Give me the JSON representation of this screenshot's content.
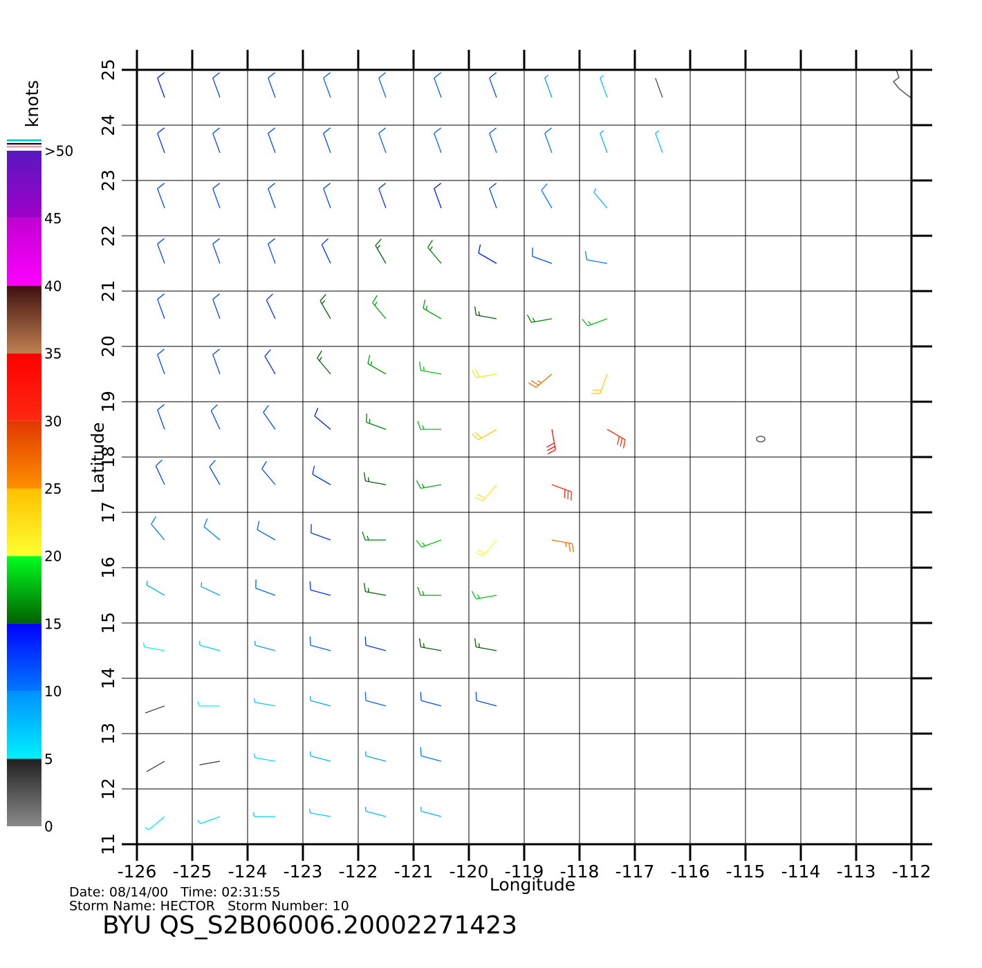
{
  "chart_data": {
    "type": "wind-barb",
    "x_label": "Longitude",
    "y_label": "Latitude",
    "xlim": [
      -126,
      -112
    ],
    "ylim": [
      11,
      25
    ],
    "xticks": [
      -126,
      -125,
      -124,
      -123,
      -122,
      -121,
      -120,
      -119,
      -118,
      -117,
      -116,
      -115,
      -114,
      -113,
      -112
    ],
    "yticks": [
      11,
      12,
      13,
      14,
      15,
      16,
      17,
      18,
      19,
      20,
      21,
      22,
      23,
      24,
      25
    ],
    "grid": true,
    "colorbar": {
      "label": "knots",
      "lim": [
        0,
        50
      ],
      "bands": [
        {
          "from": 0,
          "to": 5,
          "colors": [
            "#8a8a8a",
            "#202020"
          ]
        },
        {
          "from": 5,
          "to": 10,
          "colors": [
            "#00f0ff",
            "#0090ff"
          ]
        },
        {
          "from": 10,
          "to": 15,
          "colors": [
            "#0078ff",
            "#0000ff"
          ]
        },
        {
          "from": 15,
          "to": 20,
          "colors": [
            "#006000",
            "#00ff20"
          ]
        },
        {
          "from": 20,
          "to": 25,
          "colors": [
            "#ffff30",
            "#ffc000"
          ]
        },
        {
          "from": 25,
          "to": 30,
          "colors": [
            "#ff9000",
            "#e03800"
          ]
        },
        {
          "from": 30,
          "to": 35,
          "colors": [
            "#ff2810",
            "#ff0000"
          ]
        },
        {
          "from": 35,
          "to": 40,
          "colors": [
            "#c08050",
            "#401010"
          ]
        },
        {
          "from": 40,
          "to": 45,
          "colors": [
            "#ff00ff",
            "#c000d0"
          ]
        },
        {
          "from": 45,
          "to": 50,
          "colors": [
            "#a000c8",
            "#5818c0"
          ]
        }
      ],
      "ticks": [
        0,
        5,
        10,
        15,
        20,
        25,
        30,
        35,
        40,
        45,
        {
          "value": 50,
          "label": ">50"
        }
      ]
    },
    "rows": [
      {
        "lat": 24.5,
        "lon": [
          -125.5,
          -124.5,
          -123.5,
          -122.5,
          -121.5,
          -120.5,
          -119.5,
          -118.5,
          -117.5,
          -116.5
        ],
        "speed": [
          14,
          12,
          12,
          11,
          11,
          11,
          12,
          9,
          7,
          3
        ],
        "dir": [
          340,
          340,
          340,
          340,
          340,
          340,
          340,
          340,
          340,
          340
        ]
      },
      {
        "lat": 23.5,
        "lon": [
          -125.5,
          -124.5,
          -123.5,
          -122.5,
          -121.5,
          -120.5,
          -119.5,
          -118.5,
          -117.5,
          -116.5
        ],
        "speed": [
          13,
          12,
          12,
          12,
          11,
          11,
          11,
          10,
          8,
          7
        ],
        "dir": [
          340,
          340,
          340,
          340,
          340,
          340,
          340,
          340,
          340,
          340
        ]
      },
      {
        "lat": 22.5,
        "lon": [
          -125.5,
          -124.5,
          -123.5,
          -122.5,
          -121.5,
          -120.5,
          -119.5,
          -118.5,
          -117.5
        ],
        "speed": [
          12,
          12,
          12,
          12,
          13,
          14,
          12,
          10,
          8
        ],
        "dir": [
          340,
          340,
          340,
          340,
          340,
          340,
          340,
          330,
          320
        ]
      },
      {
        "lat": 21.5,
        "lon": [
          -125.5,
          -124.5,
          -123.5,
          -122.5,
          -121.5,
          -120.5,
          -119.5,
          -118.5,
          -117.5
        ],
        "speed": [
          12,
          12,
          12,
          13,
          15,
          16,
          14,
          12,
          10
        ],
        "dir": [
          340,
          340,
          340,
          335,
          330,
          320,
          300,
          290,
          280
        ]
      },
      {
        "lat": 20.5,
        "lon": [
          -125.5,
          -124.5,
          -123.5,
          -122.5,
          -121.5,
          -120.5,
          -119.5,
          -118.5,
          -117.5
        ],
        "speed": [
          12,
          12,
          13,
          15,
          17,
          17,
          15,
          16,
          18
        ],
        "dir": [
          340,
          340,
          335,
          330,
          320,
          300,
          280,
          260,
          250
        ]
      },
      {
        "lat": 19.5,
        "lon": [
          -125.5,
          -124.5,
          -123.5,
          -122.5,
          -121.5,
          -120.5,
          -119.5,
          -118.5,
          -117.5
        ],
        "speed": [
          12,
          12,
          13,
          15,
          17,
          18,
          22,
          27,
          24
        ],
        "dir": [
          340,
          340,
          330,
          320,
          300,
          280,
          260,
          230,
          200
        ]
      },
      {
        "lat": 18.5,
        "lon": [
          -125.5,
          -124.5,
          -123.5,
          -122.5,
          -121.5,
          -120.5,
          -119.5,
          -118.5,
          -117.5
        ],
        "speed": [
          12,
          12,
          12,
          14,
          16,
          18,
          24,
          34,
          30
        ],
        "dir": [
          340,
          335,
          325,
          310,
          290,
          270,
          240,
          170,
          120
        ]
      },
      {
        "lat": 17.5,
        "lon": [
          -125.5,
          -124.5,
          -123.5,
          -122.5,
          -121.5,
          -120.5,
          -119.5,
          -118.5
        ],
        "speed": [
          12,
          12,
          12,
          13,
          15,
          17,
          22,
          30
        ],
        "dir": [
          335,
          330,
          320,
          300,
          280,
          260,
          220,
          110
        ]
      },
      {
        "lat": 16.5,
        "lon": [
          -125.5,
          -124.5,
          -123.5,
          -122.5,
          -121.5,
          -120.5,
          -119.5,
          -118.5
        ],
        "speed": [
          10,
          10,
          11,
          13,
          16,
          18,
          20,
          27
        ],
        "dir": [
          320,
          310,
          300,
          290,
          270,
          250,
          220,
          100
        ]
      },
      {
        "lat": 15.5,
        "lon": [
          -125.5,
          -124.5,
          -123.5,
          -122.5,
          -121.5,
          -120.5,
          -119.5
        ],
        "speed": [
          8,
          9,
          11,
          13,
          15,
          17,
          18
        ],
        "dir": [
          300,
          295,
          290,
          285,
          280,
          270,
          260
        ]
      },
      {
        "lat": 14.5,
        "lon": [
          -125.5,
          -124.5,
          -123.5,
          -122.5,
          -121.5,
          -120.5,
          -119.5
        ],
        "speed": [
          5,
          7,
          9,
          11,
          13,
          15,
          15
        ],
        "dir": [
          280,
          285,
          285,
          285,
          285,
          280,
          280
        ]
      },
      {
        "lat": 13.5,
        "lon": [
          -125.5,
          -124.5,
          -123.5,
          -122.5,
          -121.5,
          -120.5,
          -119.5
        ],
        "speed": [
          3,
          5,
          7,
          9,
          11,
          12,
          12
        ],
        "dir": [
          250,
          270,
          280,
          285,
          285,
          285,
          285
        ]
      },
      {
        "lat": 12.5,
        "lon": [
          -125.5,
          -124.5,
          -123.5,
          -122.5,
          -121.5,
          -120.5
        ],
        "speed": [
          3,
          4,
          6,
          8,
          9,
          10
        ],
        "dir": [
          240,
          260,
          280,
          285,
          285,
          285
        ]
      },
      {
        "lat": 11.5,
        "lon": [
          -125.5,
          -124.5,
          -123.5,
          -122.5,
          -121.5,
          -120.5
        ],
        "speed": [
          5,
          6,
          7,
          7,
          8,
          8
        ],
        "dir": [
          230,
          250,
          270,
          280,
          285,
          285
        ]
      }
    ],
    "footer": {
      "line1": "Date: 08/14/00   Time: 02:31:55",
      "line2": "Storm Name: HECTOR   Storm Number: 10",
      "title": "BYU  QS_S2B06006.20002271423"
    }
  }
}
